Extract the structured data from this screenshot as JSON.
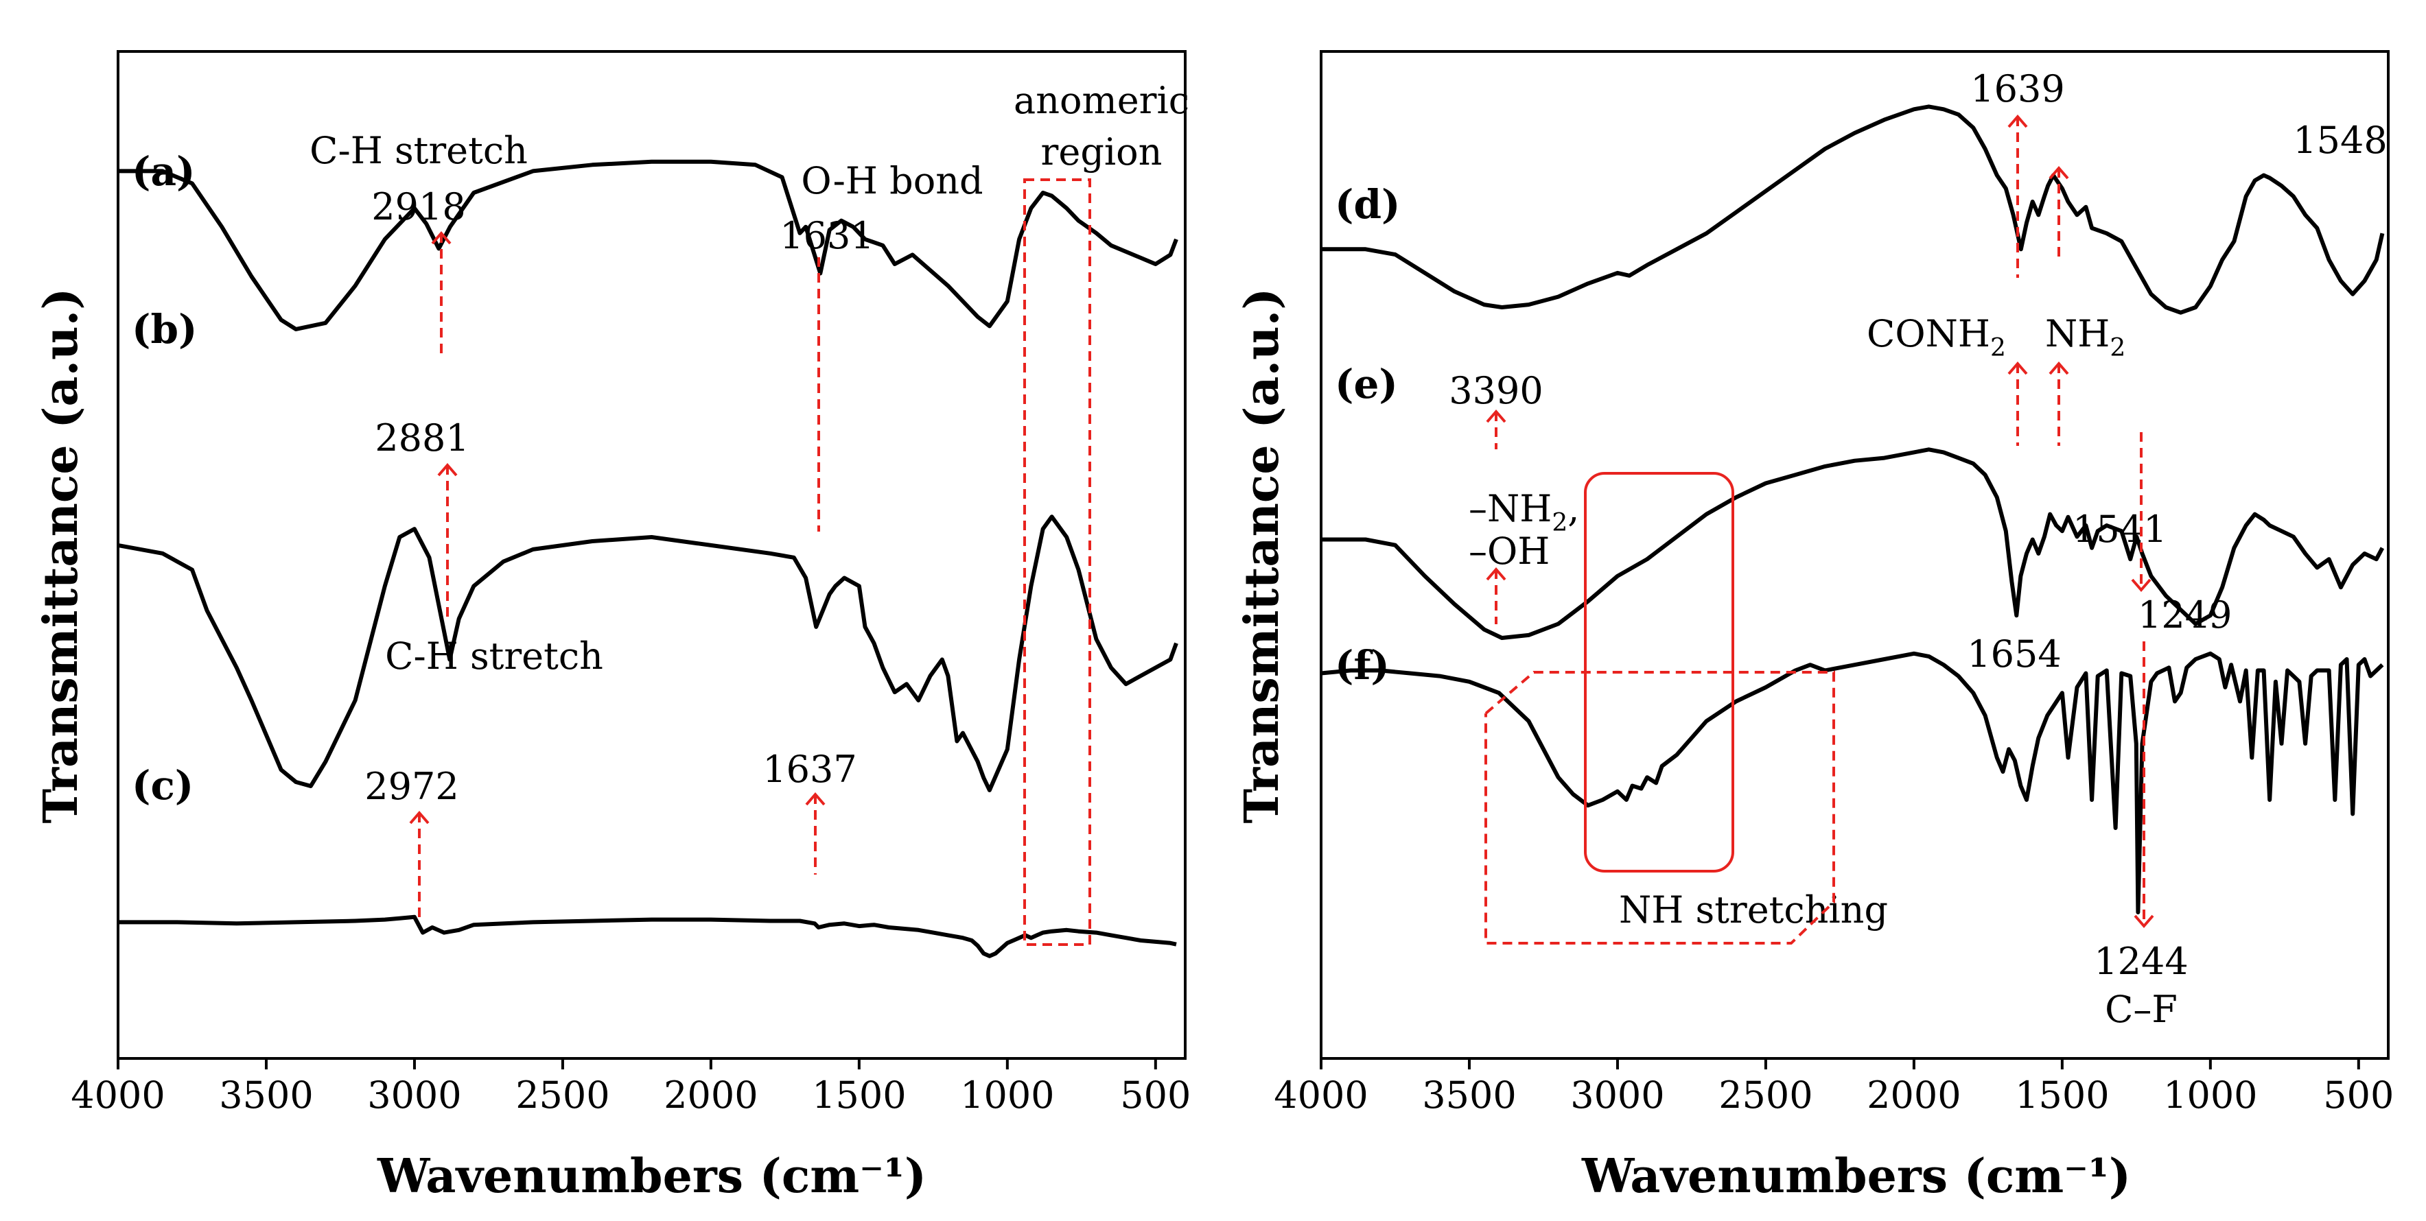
{
  "chart_data": [
    {
      "type": "line",
      "panel": "left",
      "xlabel": "Wavenumbers (cm⁻¹)",
      "ylabel": "Transmittance (a.u.)",
      "xlim": [
        4000,
        400
      ],
      "xtick_values": [
        4000,
        3500,
        3000,
        2500,
        2000,
        1500,
        1000,
        500
      ],
      "xtick_labels": [
        "4000",
        "3500",
        "3000",
        "2500",
        "2000",
        "1500",
        "1000",
        "500"
      ],
      "series": [
        {
          "name": "(a)",
          "x": [
            4000,
            3850,
            3750,
            3650,
            3550,
            3450,
            3400,
            3300,
            3200,
            3100,
            3000,
            2960,
            2918,
            2880,
            2800,
            2600,
            2400,
            2200,
            2000,
            1850,
            1760,
            1700,
            1680,
            1631,
            1600,
            1560,
            1520,
            1480,
            1420,
            1380,
            1320,
            1260,
            1200,
            1150,
            1100,
            1060,
            1000,
            960,
            920,
            880,
            850,
            800,
            760,
            700,
            650,
            600,
            550,
            500,
            450,
            430
          ],
          "y": [
            82,
            82,
            78,
            64,
            48,
            34,
            31,
            33,
            45,
            60,
            70,
            65,
            57,
            64,
            75,
            82,
            84,
            85,
            85,
            84,
            80,
            62,
            64,
            49,
            63,
            66,
            64,
            60,
            58,
            52,
            55,
            50,
            45,
            40,
            35,
            32,
            40,
            60,
            70,
            75,
            74,
            70,
            66,
            62,
            58,
            56,
            54,
            52,
            55,
            60
          ]
        },
        {
          "name": "(b)",
          "x": [
            4000,
            3850,
            3750,
            3700,
            3650,
            3600,
            3550,
            3450,
            3400,
            3350,
            3300,
            3200,
            3100,
            3050,
            3000,
            2950,
            2881,
            2850,
            2800,
            2700,
            2600,
            2400,
            2200,
            2000,
            1800,
            1720,
            1680,
            1645,
            1600,
            1580,
            1550,
            1500,
            1480,
            1450,
            1420,
            1380,
            1340,
            1300,
            1260,
            1220,
            1200,
            1170,
            1150,
            1100,
            1080,
            1060,
            1000,
            960,
            920,
            880,
            850,
            800,
            760,
            700,
            650,
            600,
            550,
            500,
            450,
            430
          ],
          "y": [
            58,
            56,
            52,
            42,
            35,
            28,
            20,
            3,
            0,
            -1,
            5,
            20,
            48,
            60,
            62,
            55,
            30,
            40,
            48,
            54,
            57,
            59,
            60,
            58,
            56,
            55,
            50,
            38,
            46,
            48,
            50,
            48,
            38,
            34,
            28,
            22,
            24,
            20,
            26,
            30,
            26,
            10,
            12,
            5,
            1,
            -2,
            8,
            30,
            48,
            62,
            65,
            60,
            52,
            35,
            28,
            24,
            26,
            28,
            30,
            34
          ]
        },
        {
          "name": "(c)",
          "x": [
            4000,
            3800,
            3600,
            3400,
            3200,
            3100,
            3050,
            3000,
            2972,
            2940,
            2900,
            2850,
            2800,
            2600,
            2400,
            2200,
            2000,
            1800,
            1700,
            1650,
            1637,
            1600,
            1550,
            1500,
            1450,
            1400,
            1350,
            1300,
            1250,
            1200,
            1150,
            1120,
            1100,
            1080,
            1060,
            1040,
            1020,
            1000,
            980,
            960,
            940,
            920,
            900,
            880,
            850,
            800,
            760,
            700,
            650,
            600,
            550,
            500,
            450,
            430
          ],
          "y": [
            24,
            24,
            23,
            24,
            25,
            26,
            27,
            28,
            16,
            20,
            16,
            18,
            22,
            24,
            25,
            26,
            26,
            25,
            25,
            23,
            20,
            22,
            23,
            21,
            22,
            20,
            19,
            18,
            16,
            14,
            12,
            10,
            6,
            0,
            -2,
            0,
            4,
            8,
            10,
            12,
            14,
            12,
            14,
            16,
            17,
            18,
            17,
            16,
            14,
            12,
            10,
            9,
            8,
            7
          ]
        }
      ]
    },
    {
      "type": "line",
      "panel": "right",
      "xlabel": "Wavenumbers (cm⁻¹)",
      "ylabel": "Transmittance (a.u.)",
      "xlim": [
        4000,
        400
      ],
      "xtick_values": [
        4000,
        3500,
        3000,
        2500,
        2000,
        1500,
        1000,
        500
      ],
      "xtick_labels": [
        "4000",
        "3500",
        "3000",
        "2500",
        "2000",
        "1500",
        "1000",
        "500"
      ],
      "series": [
        {
          "name": "(d)",
          "x": [
            4000,
            3850,
            3750,
            3650,
            3550,
            3450,
            3390,
            3300,
            3200,
            3100,
            3000,
            2960,
            2900,
            2800,
            2700,
            2600,
            2500,
            2400,
            2300,
            2200,
            2100,
            2000,
            1950,
            1900,
            1850,
            1800,
            1760,
            1720,
            1690,
            1665,
            1639,
            1620,
            1600,
            1580,
            1560,
            1548,
            1530,
            1500,
            1480,
            1450,
            1420,
            1400,
            1350,
            1300,
            1250,
            1200,
            1150,
            1100,
            1050,
            1000,
            960,
            920,
            880,
            850,
            820,
            800,
            760,
            720,
            680,
            640,
            600,
            560,
            520,
            480,
            440,
            420
          ],
          "y": [
            42,
            42,
            40,
            33,
            26,
            21,
            20,
            21,
            24,
            29,
            33,
            32,
            36,
            42,
            48,
            56,
            64,
            72,
            80,
            86,
            91,
            95,
            96,
            95,
            93,
            88,
            80,
            70,
            65,
            55,
            42,
            52,
            60,
            55,
            62,
            66,
            70,
            65,
            60,
            55,
            58,
            50,
            48,
            45,
            35,
            25,
            20,
            18,
            20,
            28,
            38,
            45,
            62,
            68,
            70,
            69,
            66,
            62,
            55,
            50,
            38,
            30,
            25,
            30,
            38,
            48
          ]
        },
        {
          "name": "(e)",
          "x": [
            4000,
            3850,
            3750,
            3650,
            3550,
            3450,
            3390,
            3300,
            3200,
            3100,
            3000,
            2900,
            2800,
            2700,
            2600,
            2500,
            2400,
            2300,
            2200,
            2100,
            2000,
            1950,
            1900,
            1850,
            1800,
            1760,
            1720,
            1690,
            1670,
            1654,
            1640,
            1620,
            1600,
            1580,
            1560,
            1541,
            1520,
            1500,
            1480,
            1450,
            1420,
            1400,
            1380,
            1350,
            1300,
            1270,
            1249,
            1230,
            1200,
            1150,
            1100,
            1050,
            1000,
            960,
            920,
            880,
            850,
            820,
            800,
            760,
            720,
            680,
            640,
            600,
            560,
            520,
            480,
            440,
            420
          ],
          "y": [
            35,
            35,
            33,
            22,
            12,
            3,
            0,
            1,
            5,
            13,
            22,
            28,
            36,
            44,
            50,
            55,
            58,
            61,
            63,
            64,
            66,
            67,
            66,
            64,
            62,
            58,
            50,
            38,
            20,
            8,
            22,
            30,
            35,
            30,
            36,
            44,
            40,
            38,
            43,
            36,
            40,
            32,
            38,
            40,
            38,
            28,
            36,
            30,
            22,
            15,
            10,
            5,
            8,
            18,
            32,
            40,
            44,
            42,
            40,
            38,
            36,
            30,
            25,
            28,
            18,
            26,
            30,
            28,
            32
          ]
        },
        {
          "name": "(f)",
          "x": [
            4000,
            3900,
            3800,
            3700,
            3600,
            3500,
            3400,
            3300,
            3200,
            3150,
            3100,
            3050,
            3000,
            2970,
            2950,
            2920,
            2900,
            2870,
            2850,
            2800,
            2750,
            2700,
            2600,
            2500,
            2400,
            2350,
            2300,
            2200,
            2100,
            2000,
            1950,
            1900,
            1850,
            1800,
            1760,
            1720,
            1700,
            1680,
            1660,
            1640,
            1620,
            1600,
            1580,
            1550,
            1500,
            1480,
            1450,
            1420,
            1400,
            1380,
            1350,
            1320,
            1300,
            1270,
            1250,
            1244,
            1230,
            1200,
            1180,
            1160,
            1140,
            1120,
            1100,
            1080,
            1050,
            1000,
            970,
            950,
            930,
            900,
            880,
            860,
            840,
            820,
            800,
            780,
            760,
            740,
            720,
            700,
            680,
            660,
            640,
            600,
            580,
            560,
            540,
            520,
            500,
            480,
            460,
            440,
            420
          ],
          "y": [
            85,
            86,
            86,
            85,
            84,
            82,
            78,
            68,
            48,
            42,
            38,
            40,
            43,
            40,
            45,
            44,
            48,
            46,
            52,
            56,
            62,
            68,
            75,
            80,
            86,
            88,
            86,
            88,
            90,
            92,
            91,
            88,
            84,
            78,
            70,
            55,
            50,
            58,
            54,
            45,
            40,
            52,
            62,
            70,
            78,
            55,
            80,
            85,
            40,
            84,
            86,
            30,
            85,
            84,
            60,
            0,
            60,
            82,
            85,
            86,
            87,
            75,
            78,
            87,
            90,
            92,
            90,
            80,
            88,
            75,
            86,
            55,
            86,
            86,
            40,
            82,
            60,
            86,
            84,
            82,
            60,
            84,
            86,
            86,
            40,
            88,
            90,
            35,
            88,
            90,
            84,
            86,
            88
          ]
        }
      ]
    }
  ],
  "series_labels": {
    "a": "(a)",
    "b": "(b)",
    "c": "(c)",
    "d": "(d)",
    "e": "(e)",
    "f": "(f)"
  },
  "annotations": {
    "a_ch_stretch": "C-H stretch",
    "a_2918": "2918",
    "a_oh_bond": "O-H bond",
    "a_1631": "1631",
    "anomeric_1": "anomeric",
    "anomeric_2": "region",
    "b_2881": "2881",
    "b_ch_stretch": "C-H stretch",
    "c_2972": "2972",
    "c_1637": "1637",
    "d_1639": "1639",
    "d_1548": "1548",
    "conh2": "CONH",
    "conh2_sub": "2",
    "nh2": "NH",
    "nh2_sub": "2",
    "e_3390": "3390",
    "nh2_group": "–NH",
    "nh2_group_sub": "2",
    "nh2_group_comma": ",",
    "oh_group": "–OH",
    "e_1541": "1541",
    "e_1654": "1654",
    "e_1249": "1249",
    "nh_stretching": "NH stretching",
    "f_1244": "1244",
    "cf": "C–F"
  }
}
